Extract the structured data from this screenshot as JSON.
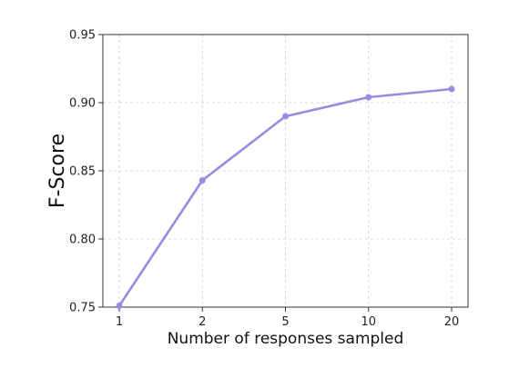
{
  "chart_data": {
    "type": "line",
    "title": "",
    "xlabel": "Number of responses sampled",
    "ylabel": "F-Score",
    "x_tick_labels": [
      "1",
      "2",
      "5",
      "10",
      "20"
    ],
    "x_scale": "categorical",
    "ylim": [
      0.75,
      0.95
    ],
    "y_ticks": [
      0.75,
      0.8,
      0.85,
      0.9,
      0.95
    ],
    "y_tick_labels": [
      "0.75",
      "0.80",
      "0.85",
      "0.90",
      "0.95"
    ],
    "grid": true,
    "legend": "none",
    "series": [
      {
        "x": [
          1,
          2,
          5,
          10,
          20
        ],
        "values": [
          0.751,
          0.843,
          0.89,
          0.904,
          0.91
        ],
        "color": "#9b8ae2",
        "marker": "circle"
      }
    ]
  }
}
